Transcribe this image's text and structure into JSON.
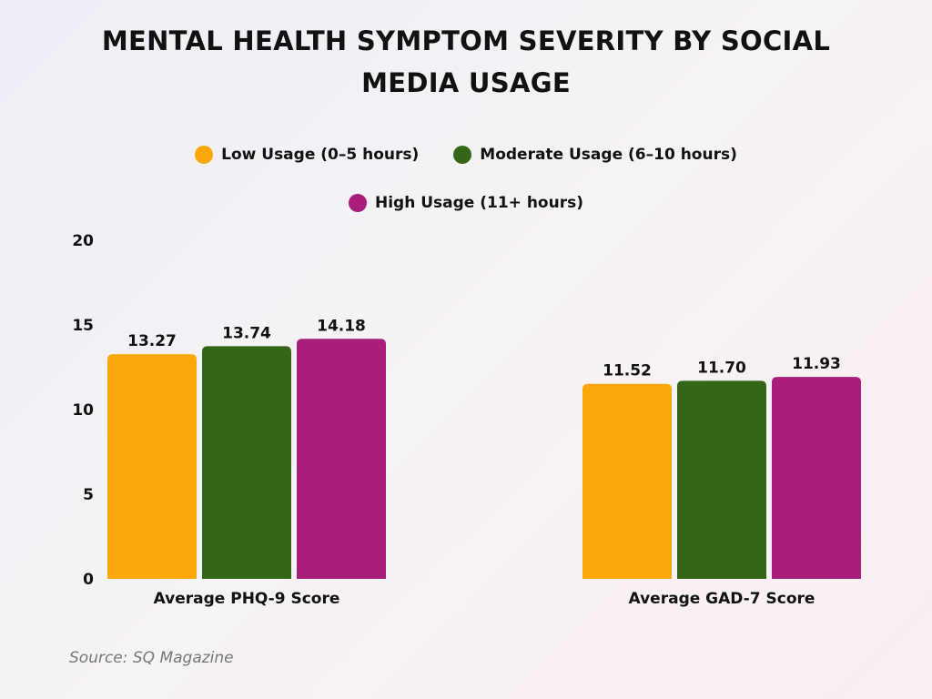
{
  "chart_data": {
    "type": "bar",
    "title": "MENTAL HEALTH SYMPTOM SEVERITY BY SOCIAL MEDIA USAGE",
    "categories": [
      "Average PHQ-9 Score",
      "Average GAD-7 Score"
    ],
    "series": [
      {
        "name": "Low Usage (0–5 hours)",
        "color": "#FBA70A",
        "values": [
          13.27,
          11.52
        ],
        "labels": [
          "13.27",
          "11.52"
        ]
      },
      {
        "name": "Moderate Usage (6–10 hours)",
        "color": "#336616",
        "values": [
          13.74,
          11.7
        ],
        "labels": [
          "13.74",
          "11.70"
        ]
      },
      {
        "name": "High Usage (11+ hours)",
        "color": "#A81E7A",
        "values": [
          14.18,
          11.93
        ],
        "labels": [
          "14.18",
          "11.93"
        ]
      }
    ],
    "yticks": [
      "0",
      "5",
      "10",
      "15",
      "20"
    ],
    "ylim": [
      0,
      20
    ],
    "grid": false,
    "legend": "top"
  },
  "source": "Source: SQ Magazine"
}
